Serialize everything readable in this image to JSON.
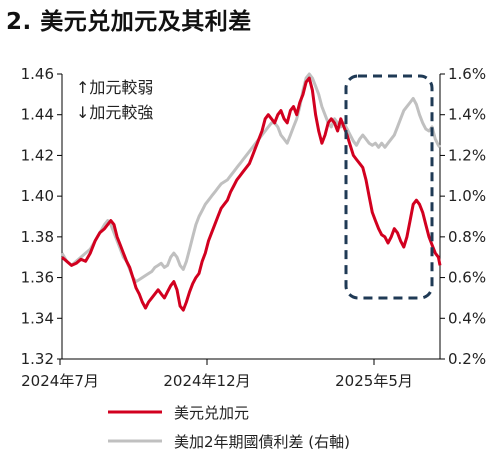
{
  "title": "2. 美元兑加元及其利差",
  "annotations": [
    "↑加元較弱",
    "↓加元較強"
  ],
  "colors": {
    "fx": "#d2001f",
    "spread": "#c0c0c0",
    "highlight": "#1f3a55"
  },
  "chart_data": {
    "type": "line",
    "title": "2. 美元兑加元及其利差",
    "x_ticks": [
      "2024年7月",
      "2024年12月",
      "2025年5月"
    ],
    "y_left": {
      "lim": [
        1.32,
        1.46
      ],
      "ticks": [
        "1.32",
        "1.34",
        "1.36",
        "1.38",
        "1.40",
        "1.42",
        "1.44",
        "1.46"
      ]
    },
    "y_right": {
      "lim": [
        0.2,
        1.6
      ],
      "ticks": [
        "0.2%",
        "0.4%",
        "0.6%",
        "0.8%",
        "1.0%",
        "1.2%",
        "1.4%",
        "1.6%"
      ]
    },
    "grid": false,
    "legend_position": "bottom",
    "series": [
      {
        "name": "美元兑加元",
        "axis": "left",
        "color": "#d2001f",
        "points": [
          [
            0,
            1.37
          ],
          [
            3,
            1.368
          ],
          [
            6,
            1.366
          ],
          [
            9,
            1.367
          ],
          [
            12,
            1.369
          ],
          [
            15,
            1.368
          ],
          [
            18,
            1.372
          ],
          [
            21,
            1.378
          ],
          [
            24,
            1.382
          ],
          [
            27,
            1.384
          ],
          [
            29,
            1.386
          ],
          [
            31,
            1.388
          ],
          [
            33,
            1.386
          ],
          [
            35,
            1.38
          ],
          [
            37,
            1.376
          ],
          [
            39,
            1.372
          ],
          [
            41,
            1.368
          ],
          [
            43,
            1.365
          ],
          [
            45,
            1.36
          ],
          [
            47,
            1.355
          ],
          [
            49,
            1.352
          ],
          [
            51,
            1.348
          ],
          [
            53,
            1.345
          ],
          [
            55,
            1.348
          ],
          [
            57,
            1.35
          ],
          [
            59,
            1.352
          ],
          [
            61,
            1.354
          ],
          [
            63,
            1.352
          ],
          [
            65,
            1.35
          ],
          [
            67,
            1.353
          ],
          [
            69,
            1.356
          ],
          [
            71,
            1.358
          ],
          [
            73,
            1.354
          ],
          [
            75,
            1.346
          ],
          [
            77,
            1.344
          ],
          [
            79,
            1.348
          ],
          [
            81,
            1.353
          ],
          [
            83,
            1.357
          ],
          [
            85,
            1.36
          ],
          [
            87,
            1.362
          ],
          [
            89,
            1.368
          ],
          [
            91,
            1.372
          ],
          [
            93,
            1.378
          ],
          [
            95,
            1.382
          ],
          [
            97,
            1.386
          ],
          [
            99,
            1.39
          ],
          [
            101,
            1.394
          ],
          [
            103,
            1.396
          ],
          [
            105,
            1.398
          ],
          [
            107,
            1.402
          ],
          [
            109,
            1.405
          ],
          [
            111,
            1.408
          ],
          [
            113,
            1.41
          ],
          [
            115,
            1.412
          ],
          [
            117,
            1.414
          ],
          [
            119,
            1.416
          ],
          [
            121,
            1.42
          ],
          [
            123,
            1.424
          ],
          [
            125,
            1.428
          ],
          [
            127,
            1.432
          ],
          [
            129,
            1.438
          ],
          [
            131,
            1.44
          ],
          [
            133,
            1.438
          ],
          [
            135,
            1.436
          ],
          [
            137,
            1.44
          ],
          [
            139,
            1.442
          ],
          [
            141,
            1.438
          ],
          [
            143,
            1.436
          ],
          [
            145,
            1.442
          ],
          [
            147,
            1.444
          ],
          [
            149,
            1.44
          ],
          [
            151,
            1.446
          ],
          [
            153,
            1.45
          ],
          [
            155,
            1.456
          ],
          [
            157,
            1.458
          ],
          [
            159,
            1.452
          ],
          [
            161,
            1.44
          ],
          [
            163,
            1.432
          ],
          [
            165,
            1.426
          ],
          [
            167,
            1.43
          ],
          [
            169,
            1.436
          ],
          [
            171,
            1.438
          ],
          [
            173,
            1.436
          ],
          [
            175,
            1.432
          ],
          [
            177,
            1.438
          ],
          [
            179,
            1.434
          ],
          [
            181,
            1.43
          ],
          [
            183,
            1.425
          ],
          [
            185,
            1.42
          ],
          [
            187,
            1.418
          ],
          [
            189,
            1.416
          ],
          [
            191,
            1.414
          ],
          [
            193,
            1.408
          ],
          [
            195,
            1.4
          ],
          [
            197,
            1.392
          ],
          [
            199,
            1.388
          ],
          [
            201,
            1.384
          ],
          [
            203,
            1.381
          ],
          [
            205,
            1.38
          ],
          [
            207,
            1.377
          ],
          [
            209,
            1.38
          ],
          [
            211,
            1.384
          ],
          [
            213,
            1.382
          ],
          [
            215,
            1.378
          ],
          [
            217,
            1.375
          ],
          [
            219,
            1.38
          ],
          [
            221,
            1.388
          ],
          [
            223,
            1.396
          ],
          [
            225,
            1.398
          ],
          [
            227,
            1.396
          ],
          [
            229,
            1.392
          ],
          [
            231,
            1.386
          ],
          [
            233,
            1.38
          ],
          [
            235,
            1.376
          ],
          [
            237,
            1.372
          ],
          [
            239,
            1.37
          ],
          [
            240,
            1.366
          ]
        ]
      },
      {
        "name": "美加2年期國債利差 (右軸)",
        "axis": "right",
        "color": "#c0c0c0",
        "points": [
          [
            0,
            0.72
          ],
          [
            3,
            0.68
          ],
          [
            6,
            0.66
          ],
          [
            9,
            0.68
          ],
          [
            12,
            0.7
          ],
          [
            15,
            0.72
          ],
          [
            18,
            0.74
          ],
          [
            21,
            0.78
          ],
          [
            24,
            0.82
          ],
          [
            27,
            0.86
          ],
          [
            29,
            0.88
          ],
          [
            31,
            0.86
          ],
          [
            33,
            0.82
          ],
          [
            35,
            0.78
          ],
          [
            37,
            0.74
          ],
          [
            39,
            0.7
          ],
          [
            41,
            0.68
          ],
          [
            43,
            0.64
          ],
          [
            45,
            0.6
          ],
          [
            47,
            0.58
          ],
          [
            49,
            0.59
          ],
          [
            51,
            0.6
          ],
          [
            53,
            0.61
          ],
          [
            55,
            0.62
          ],
          [
            57,
            0.63
          ],
          [
            59,
            0.65
          ],
          [
            61,
            0.66
          ],
          [
            63,
            0.67
          ],
          [
            65,
            0.65
          ],
          [
            67,
            0.66
          ],
          [
            69,
            0.7
          ],
          [
            71,
            0.72
          ],
          [
            73,
            0.7
          ],
          [
            75,
            0.66
          ],
          [
            77,
            0.64
          ],
          [
            79,
            0.68
          ],
          [
            81,
            0.74
          ],
          [
            83,
            0.8
          ],
          [
            85,
            0.86
          ],
          [
            87,
            0.9
          ],
          [
            89,
            0.93
          ],
          [
            91,
            0.96
          ],
          [
            93,
            0.98
          ],
          [
            95,
            1.0
          ],
          [
            97,
            1.02
          ],
          [
            99,
            1.04
          ],
          [
            101,
            1.06
          ],
          [
            103,
            1.07
          ],
          [
            105,
            1.08
          ],
          [
            107,
            1.1
          ],
          [
            109,
            1.12
          ],
          [
            111,
            1.14
          ],
          [
            113,
            1.16
          ],
          [
            115,
            1.18
          ],
          [
            117,
            1.2
          ],
          [
            119,
            1.22
          ],
          [
            121,
            1.24
          ],
          [
            123,
            1.26
          ],
          [
            125,
            1.28
          ],
          [
            127,
            1.3
          ],
          [
            129,
            1.32
          ],
          [
            131,
            1.34
          ],
          [
            133,
            1.36
          ],
          [
            135,
            1.36
          ],
          [
            137,
            1.34
          ],
          [
            139,
            1.3
          ],
          [
            141,
            1.28
          ],
          [
            143,
            1.26
          ],
          [
            145,
            1.3
          ],
          [
            147,
            1.34
          ],
          [
            149,
            1.38
          ],
          [
            151,
            1.44
          ],
          [
            153,
            1.52
          ],
          [
            155,
            1.58
          ],
          [
            157,
            1.6
          ],
          [
            159,
            1.58
          ],
          [
            161,
            1.54
          ],
          [
            163,
            1.5
          ],
          [
            165,
            1.44
          ],
          [
            167,
            1.4
          ],
          [
            169,
            1.36
          ],
          [
            171,
            1.34
          ],
          [
            173,
            1.38
          ],
          [
            175,
            1.36
          ],
          [
            177,
            1.34
          ],
          [
            179,
            1.36
          ],
          [
            181,
            1.33
          ],
          [
            183,
            1.3
          ],
          [
            185,
            1.27
          ],
          [
            187,
            1.25
          ],
          [
            189,
            1.28
          ],
          [
            191,
            1.3
          ],
          [
            193,
            1.28
          ],
          [
            195,
            1.26
          ],
          [
            197,
            1.25
          ],
          [
            199,
            1.26
          ],
          [
            201,
            1.24
          ],
          [
            203,
            1.26
          ],
          [
            205,
            1.24
          ],
          [
            207,
            1.26
          ],
          [
            209,
            1.28
          ],
          [
            211,
            1.3
          ],
          [
            213,
            1.34
          ],
          [
            215,
            1.38
          ],
          [
            217,
            1.42
          ],
          [
            219,
            1.44
          ],
          [
            221,
            1.46
          ],
          [
            223,
            1.48
          ],
          [
            225,
            1.45
          ],
          [
            227,
            1.4
          ],
          [
            229,
            1.36
          ],
          [
            231,
            1.33
          ],
          [
            233,
            1.32
          ],
          [
            235,
            1.34
          ],
          [
            237,
            1.28
          ],
          [
            239,
            1.25
          ],
          [
            240,
            1.24
          ]
        ]
      }
    ]
  }
}
